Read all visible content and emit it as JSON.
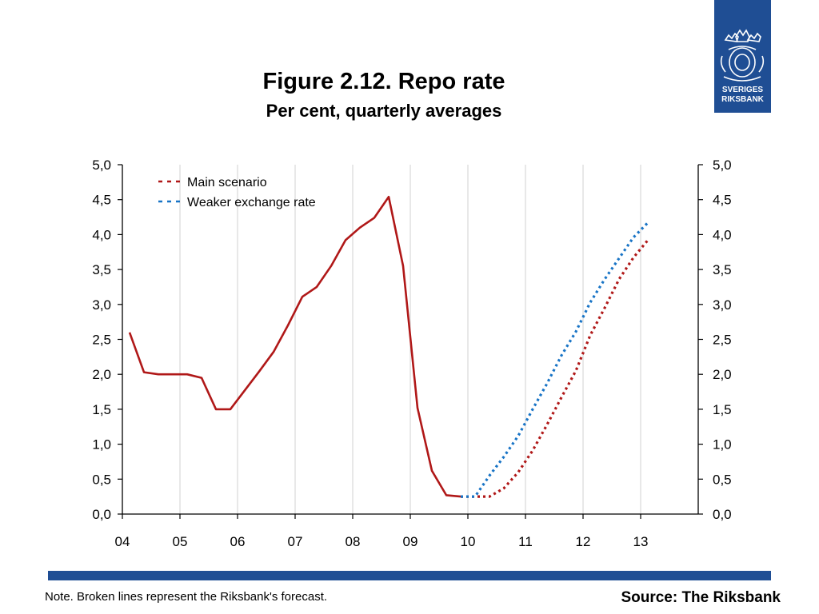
{
  "header": {
    "title": "Figure 2.12. Repo rate",
    "subtitle": "Per cent, quarterly averages"
  },
  "logo": {
    "line1": "SVERIGES",
    "line2": "RIKSBANK",
    "color": "#1f4e94"
  },
  "footer": {
    "note": "Note. Broken lines represent the Riksbank's forecast.",
    "source": "Source: The Riksbank",
    "bar_color": "#1f4e94"
  },
  "chart_data": {
    "type": "line",
    "title": "Figure 2.12. Repo rate",
    "subtitle": "Per cent, quarterly averages",
    "xlabel": "",
    "ylabel": "",
    "xlim": [
      2004,
      2014
    ],
    "ylim": [
      0,
      5
    ],
    "x_ticks": [
      2004,
      2005,
      2006,
      2007,
      2008,
      2009,
      2010,
      2011,
      2012,
      2013
    ],
    "x_tick_labels": [
      "04",
      "05",
      "06",
      "07",
      "08",
      "09",
      "10",
      "11",
      "12",
      "13"
    ],
    "y_ticks": [
      0,
      0.5,
      1,
      1.5,
      2,
      2.5,
      3,
      3.5,
      4,
      4.5,
      5
    ],
    "y_tick_labels": [
      "0,0",
      "0,5",
      "1,0",
      "1,5",
      "2,0",
      "2,5",
      "3,0",
      "3,5",
      "4,0",
      "4,5",
      "5,0"
    ],
    "grid": "vertical",
    "legend_position": "top-left",
    "series": [
      {
        "name": "",
        "style": "solid",
        "color": "#b01818",
        "x": [
          2004.125,
          2004.375,
          2004.625,
          2004.875,
          2005.125,
          2005.375,
          2005.625,
          2005.875,
          2006.125,
          2006.375,
          2006.625,
          2006.875,
          2007.125,
          2007.375,
          2007.625,
          2007.875,
          2008.125,
          2008.375,
          2008.625,
          2008.875,
          2009.125,
          2009.375,
          2009.625,
          2009.875
        ],
        "y": [
          2.6,
          2.03,
          2.0,
          2.0,
          2.0,
          1.95,
          1.5,
          1.5,
          1.77,
          2.04,
          2.32,
          2.7,
          3.11,
          3.25,
          3.55,
          3.92,
          4.1,
          4.24,
          4.54,
          3.55,
          1.52,
          0.62,
          0.27,
          0.25
        ]
      },
      {
        "name": "Main scenario",
        "style": "dashed",
        "color": "#b01818",
        "x": [
          2009.875,
          2010.125,
          2010.375,
          2010.625,
          2010.875,
          2011.125,
          2011.375,
          2011.625,
          2011.875,
          2012.125,
          2012.375,
          2012.625,
          2012.875,
          2013.125
        ],
        "y": [
          0.25,
          0.25,
          0.25,
          0.37,
          0.6,
          0.91,
          1.28,
          1.67,
          2.05,
          2.56,
          2.95,
          3.36,
          3.67,
          3.92
        ]
      },
      {
        "name": "Weaker exchange rate",
        "style": "dashed",
        "color": "#1874c6",
        "x": [
          2009.875,
          2010.125,
          2010.375,
          2010.625,
          2010.875,
          2011.125,
          2011.375,
          2011.625,
          2011.875,
          2012.125,
          2012.375,
          2012.625,
          2012.875,
          2013.125
        ],
        "y": [
          0.25,
          0.25,
          0.55,
          0.82,
          1.12,
          1.5,
          1.87,
          2.27,
          2.61,
          3.03,
          3.36,
          3.66,
          3.96,
          4.17
        ]
      }
    ]
  }
}
